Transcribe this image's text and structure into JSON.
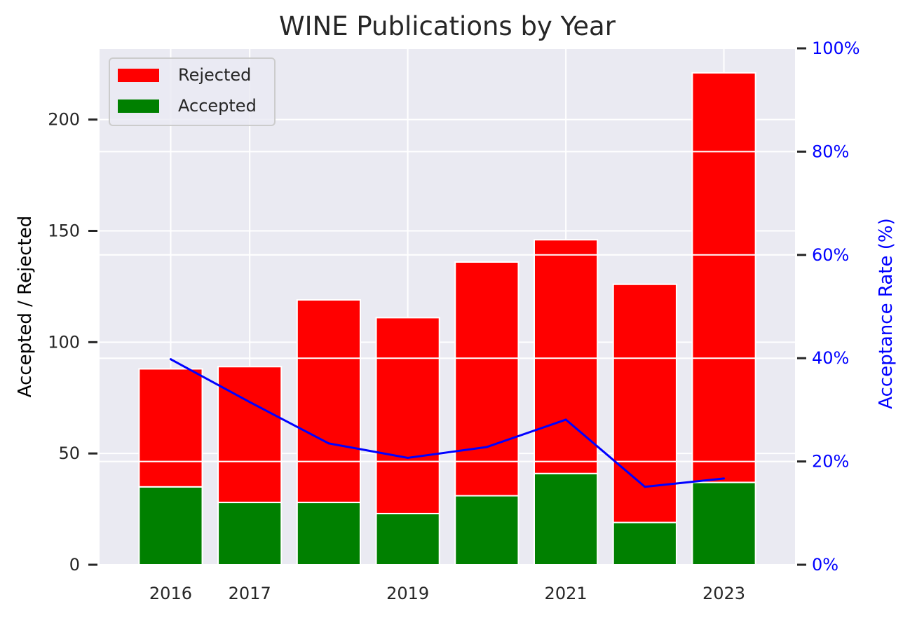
{
  "chart_data": {
    "type": "bar",
    "title": "WINE Publications by Year",
    "x": [
      2016,
      2017,
      2018,
      2019,
      2020,
      2021,
      2022,
      2023
    ],
    "x_tick_labels": [
      "2016",
      "2017",
      "2019",
      "2021",
      "2023"
    ],
    "x_tick_values": [
      2016,
      2017,
      2019,
      2021,
      2023
    ],
    "series": [
      {
        "name": "Accepted",
        "kind": "bar",
        "stacked": true,
        "color": "#008000",
        "values": [
          35,
          28,
          28,
          23,
          31,
          41,
          19,
          37
        ]
      },
      {
        "name": "Rejected",
        "kind": "bar",
        "stacked": true,
        "color": "#ff0000",
        "values": [
          53,
          61,
          91,
          88,
          105,
          105,
          107,
          184
        ]
      },
      {
        "kind": "line",
        "axis": "right",
        "color": "#0000ff",
        "values": [
          39.8,
          31.5,
          23.5,
          20.7,
          22.8,
          28.1,
          15.1,
          16.7
        ]
      }
    ],
    "ylabel": "Accepted / Rejected",
    "ylim": [
      0,
      232
    ],
    "y_ticks": [
      "0",
      "50",
      "100",
      "150",
      "200"
    ],
    "y_tick_values": [
      0,
      50,
      100,
      150,
      200
    ],
    "y2label": "Acceptance Rate (%)",
    "y2lim": [
      0,
      100
    ],
    "y2_ticks": [
      "0%",
      "20%",
      "40%",
      "60%",
      "80%",
      "100%"
    ],
    "y2_tick_values": [
      0,
      20,
      40,
      60,
      80,
      100
    ],
    "legend": {
      "position": "top-left",
      "entries": [
        "Rejected",
        "Accepted"
      ]
    },
    "grid": true,
    "background": "#eaeaf2"
  }
}
